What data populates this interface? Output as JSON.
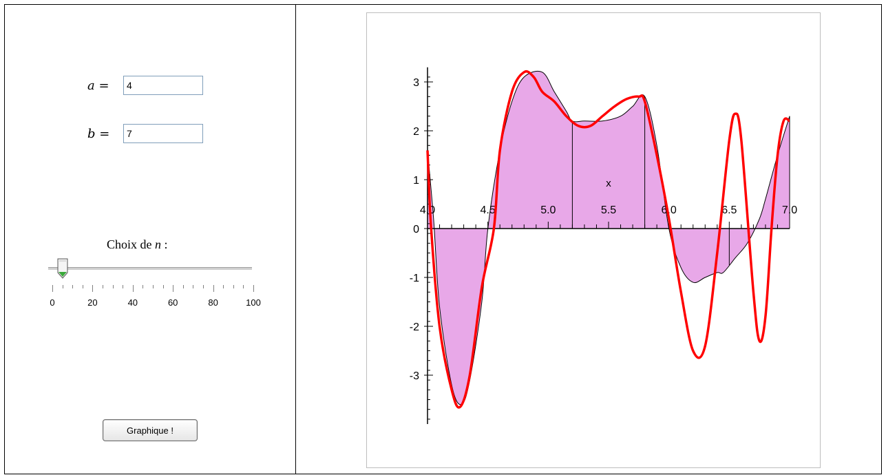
{
  "controls": {
    "a_label": "a",
    "a_eq": "=",
    "a_value": "4",
    "b_label": "b",
    "b_eq": "=",
    "b_value": "7",
    "choix_label": "Choix de",
    "choix_var": "n",
    "choix_colon": ":",
    "slider": {
      "value": 5,
      "min": 0,
      "max": 100
    },
    "tick_labels": [
      "0",
      "20",
      "40",
      "60",
      "80",
      "100"
    ],
    "button_label": "Graphique !"
  },
  "colors": {
    "curve": "#ff0000",
    "fill": "#e8a8e8",
    "axis": "#000000"
  },
  "chart_data": {
    "type": "line",
    "xlabel": "x",
    "xlim": [
      4.0,
      7.0
    ],
    "ylim": [
      -3.7,
      3.3
    ],
    "x_tick_labels": [
      "4.0",
      "4.5",
      "5.0",
      "5.5",
      "6.0",
      "6.5",
      "7.0"
    ],
    "y_tick_labels": [
      "3",
      "2",
      "1",
      "0",
      "-1",
      "-2",
      "-3"
    ],
    "grid": false,
    "partition_x": [
      4.0,
      4.5,
      5.2,
      5.8,
      6.0,
      6.5,
      7.0
    ],
    "series": [
      {
        "x": [
          4.0,
          4.03,
          4.1,
          4.2,
          4.27,
          4.35,
          4.45,
          4.55,
          4.6,
          4.7,
          4.8,
          4.88,
          4.95,
          5.05,
          5.15,
          5.25,
          5.35,
          5.45,
          5.55,
          5.65,
          5.75,
          5.8,
          5.9,
          6.0,
          6.1,
          6.2,
          6.3,
          6.4,
          6.5,
          6.55,
          6.6,
          6.7,
          6.75,
          6.8,
          6.85,
          6.9,
          6.95,
          7.0
        ],
        "y": [
          1.6,
          0.0,
          -2.0,
          -3.3,
          -3.65,
          -3.0,
          -1.2,
          0.0,
          1.6,
          2.8,
          3.2,
          3.1,
          2.8,
          2.6,
          2.3,
          2.1,
          2.1,
          2.3,
          2.5,
          2.65,
          2.7,
          2.6,
          1.5,
          0.2,
          -1.3,
          -2.5,
          -2.4,
          -0.5,
          1.8,
          2.35,
          1.8,
          -1.3,
          -2.3,
          -1.8,
          0.0,
          1.5,
          2.2,
          2.2
        ]
      },
      {
        "x": [
          4.0,
          4.05,
          4.1,
          4.2,
          4.28,
          4.35,
          4.45,
          4.5,
          4.6,
          4.7,
          4.8,
          4.95,
          5.05,
          5.15,
          5.2,
          5.3,
          5.45,
          5.6,
          5.7,
          5.8,
          5.9,
          6.0,
          6.1,
          6.2,
          6.3,
          6.4,
          6.45,
          6.55,
          6.65,
          6.75,
          6.8,
          6.9,
          7.0
        ],
        "y": [
          1.6,
          0.2,
          -1.6,
          -3.2,
          -3.6,
          -3.1,
          -1.5,
          0.0,
          1.6,
          2.6,
          3.1,
          3.2,
          2.8,
          2.4,
          2.2,
          2.2,
          2.2,
          2.3,
          2.5,
          2.7,
          1.7,
          0.0,
          -0.8,
          -1.1,
          -1.0,
          -0.9,
          -0.9,
          -0.6,
          -0.3,
          0.2,
          0.6,
          1.5,
          2.3
        ]
      }
    ]
  }
}
